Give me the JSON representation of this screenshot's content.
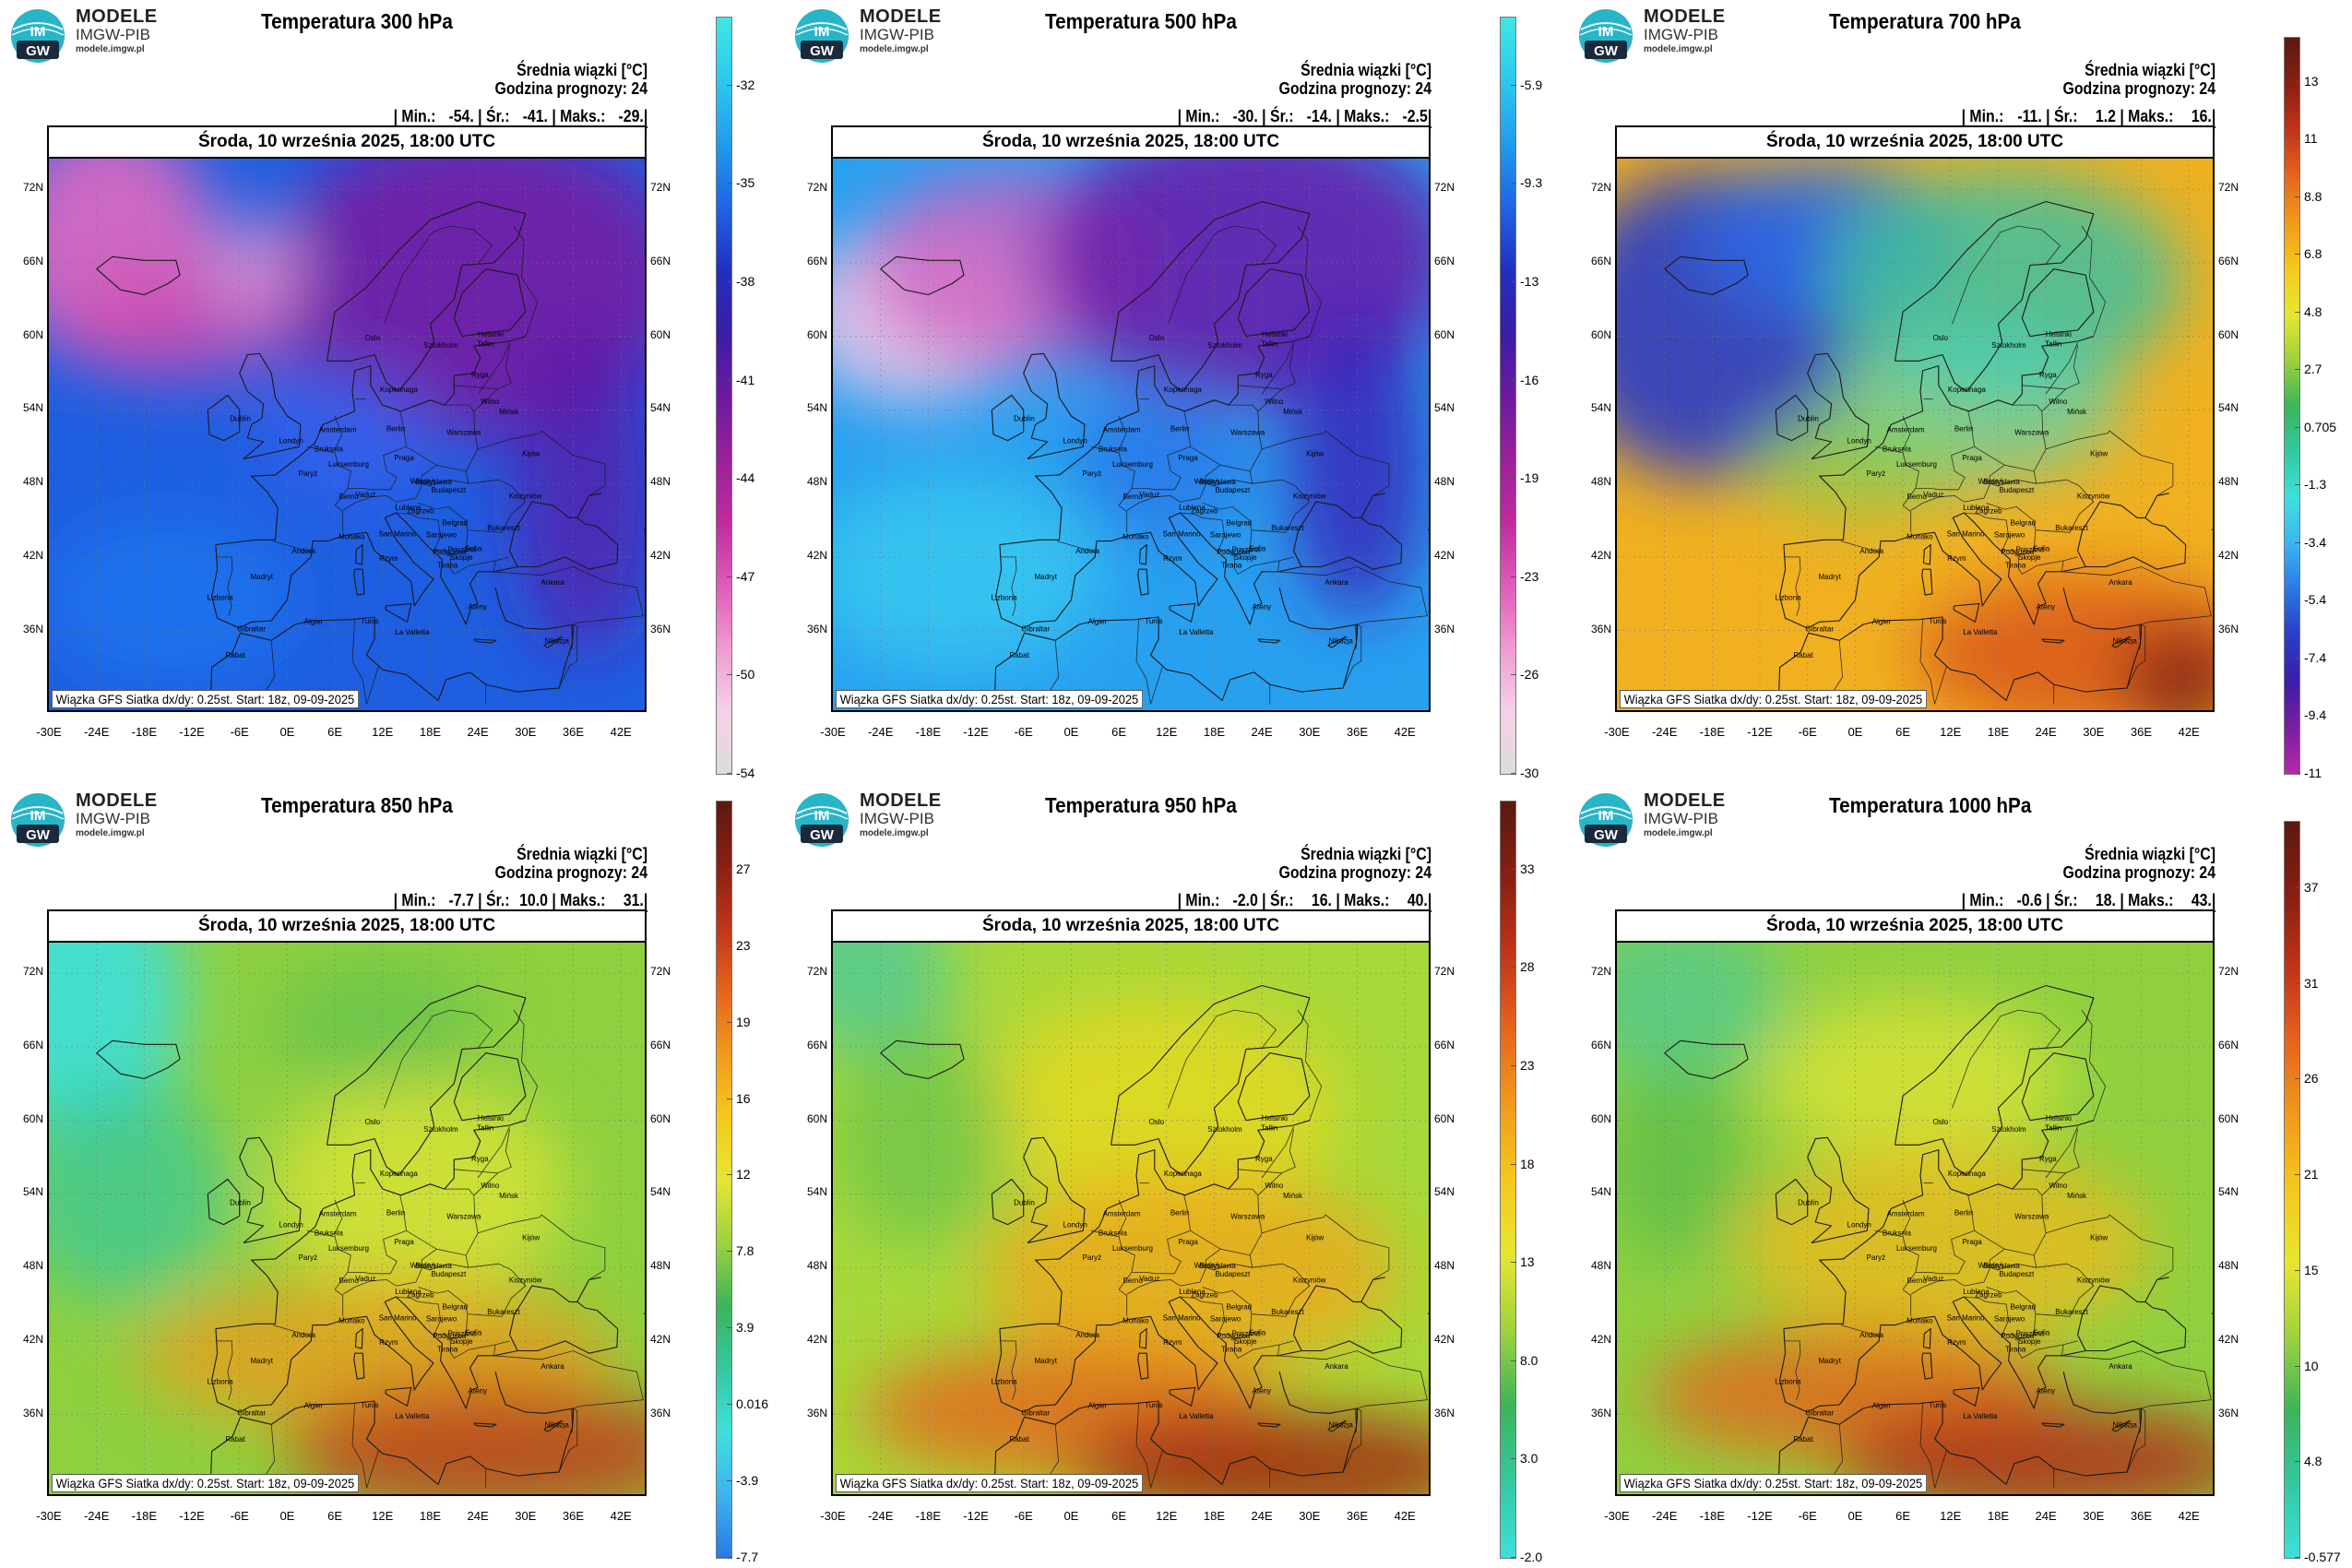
{
  "brand": {
    "line1": "MODELE",
    "line2": "IMGW-PIB",
    "line3": "modele.imgw.pl",
    "logo_text_top": "IM",
    "logo_text_bottom": "GW"
  },
  "common": {
    "date": "Środa, 10 września 2025, 18:00 UTC",
    "mean_label": "Średnia wiązki [°C]",
    "forecast_hour": "Godzina prognozy: 24",
    "footer": "Wiązka GFS Siatka dx/dy: 0.25st. Start: 18z, 09-09-2025",
    "min_label": "Min.:",
    "avg_label": "Śr.:",
    "max_label": "Maks.:",
    "lon_labels": [
      "-30E",
      "-24E",
      "-18E",
      "-12E",
      "-6E",
      "0E",
      "6E",
      "12E",
      "18E",
      "24E",
      "30E",
      "36E",
      "42E"
    ],
    "lat_labels": [
      "72N",
      "66N",
      "60N",
      "54N",
      "48N",
      "42N",
      "36N"
    ]
  },
  "cities": [
    {
      "name": "Oslo",
      "lon": 10.7,
      "lat": 59.9
    },
    {
      "name": "Sztokholm",
      "lon": 18.1,
      "lat": 59.3
    },
    {
      "name": "Helsinki",
      "lon": 24.9,
      "lat": 60.2
    },
    {
      "name": "Tallin",
      "lon": 24.8,
      "lat": 59.4
    },
    {
      "name": "Ryga",
      "lon": 24.1,
      "lat": 56.9
    },
    {
      "name": "Kopenhaga",
      "lon": 12.6,
      "lat": 55.7
    },
    {
      "name": "Wilno",
      "lon": 25.3,
      "lat": 54.7
    },
    {
      "name": "Mińsk",
      "lon": 27.6,
      "lat": 53.9
    },
    {
      "name": "Dublin",
      "lon": -6.3,
      "lat": 53.3
    },
    {
      "name": "Amsterdam",
      "lon": 4.9,
      "lat": 52.4
    },
    {
      "name": "Berlin",
      "lon": 13.4,
      "lat": 52.5
    },
    {
      "name": "Warszawa",
      "lon": 21.0,
      "lat": 52.2
    },
    {
      "name": "Londyn",
      "lon": -0.1,
      "lat": 51.5
    },
    {
      "name": "Bruksela",
      "lon": 4.35,
      "lat": 50.85
    },
    {
      "name": "Kijów",
      "lon": 30.5,
      "lat": 50.45
    },
    {
      "name": "Luksemburg",
      "lon": 6.1,
      "lat": 49.6
    },
    {
      "name": "Praga",
      "lon": 14.4,
      "lat": 50.1
    },
    {
      "name": "Paryż",
      "lon": 2.35,
      "lat": 48.85
    },
    {
      "name": "Wiedeń",
      "lon": 16.4,
      "lat": 48.2
    },
    {
      "name": "Bratysława",
      "lon": 17.1,
      "lat": 48.15
    },
    {
      "name": "Budapeszt",
      "lon": 19.05,
      "lat": 47.5
    },
    {
      "name": "Kiszyniów",
      "lon": 28.85,
      "lat": 47.0
    },
    {
      "name": "Berno",
      "lon": 7.45,
      "lat": 46.95
    },
    {
      "name": "Vaduz",
      "lon": 9.5,
      "lat": 47.1
    },
    {
      "name": "Lublana",
      "lon": 14.5,
      "lat": 46.05
    },
    {
      "name": "Zagrzeb",
      "lon": 16.0,
      "lat": 45.8
    },
    {
      "name": "Belgrad",
      "lon": 20.45,
      "lat": 44.8
    },
    {
      "name": "Bukareszt",
      "lon": 26.1,
      "lat": 44.4
    },
    {
      "name": "Sarajewo",
      "lon": 18.4,
      "lat": 43.85
    },
    {
      "name": "Monako",
      "lon": 7.4,
      "lat": 43.7
    },
    {
      "name": "San Marino",
      "lon": 12.45,
      "lat": 43.9
    },
    {
      "name": "Podgorica",
      "lon": 19.25,
      "lat": 42.45
    },
    {
      "name": "Sofia",
      "lon": 23.3,
      "lat": 42.7
    },
    {
      "name": "Andora",
      "lon": 1.5,
      "lat": 42.5
    },
    {
      "name": "Prisztina",
      "lon": 21.15,
      "lat": 42.65
    },
    {
      "name": "Skopje",
      "lon": 21.45,
      "lat": 42.0
    },
    {
      "name": "Rzym",
      "lon": 12.5,
      "lat": 41.9
    },
    {
      "name": "Tirana",
      "lon": 19.8,
      "lat": 41.35
    },
    {
      "name": "Ankara",
      "lon": 32.85,
      "lat": 39.95
    },
    {
      "name": "Madryt",
      "lon": -3.7,
      "lat": 40.4
    },
    {
      "name": "Lizbona",
      "lon": -9.15,
      "lat": 38.7
    },
    {
      "name": "Ateny",
      "lon": 23.7,
      "lat": 37.95
    },
    {
      "name": "Algier",
      "lon": 3.05,
      "lat": 36.75
    },
    {
      "name": "Tunis",
      "lon": 10.2,
      "lat": 36.8
    },
    {
      "name": "Gibraltar",
      "lon": -5.35,
      "lat": 36.15
    },
    {
      "name": "La Valletta",
      "lon": 14.5,
      "lat": 35.9
    },
    {
      "name": "Nikozja",
      "lon": 33.35,
      "lat": 35.2
    },
    {
      "name": "Rabat",
      "lon": -6.85,
      "lat": 34.0
    }
  ],
  "panels": [
    {
      "title": "Temperatura 300 hPa",
      "min": "-54.",
      "avg": "-41.",
      "max": "-29.",
      "colorbar": {
        "ticks": [
          "-32",
          "-35",
          "-38",
          "-41",
          "-44",
          "-47",
          "-50",
          "-54"
        ],
        "gradient": [
          "#3fe6e6",
          "#2ec8ee",
          "#1f9cee",
          "#1f64e6",
          "#2030c0",
          "#3a1da6",
          "#6a1aa0",
          "#9a1f9a",
          "#c02a9e",
          "#e05ab8",
          "#f09ad0",
          "#f5d0e8",
          "#dcdcdc"
        ]
      }
    },
    {
      "title": "Temperatura 500 hPa",
      "min": "-30.",
      "avg": "-14.",
      "max": "-2.5",
      "colorbar": {
        "ticks": [
          "-5.9",
          "-9.3",
          "-13",
          "-16",
          "-19",
          "-23",
          "-26",
          "-30"
        ],
        "gradient": [
          "#3fe6e6",
          "#2ec8ee",
          "#1f9cee",
          "#1f64e6",
          "#2030c0",
          "#3a1da6",
          "#6a1aa0",
          "#9a1f9a",
          "#c02a9e",
          "#e05ab8",
          "#f09ad0",
          "#f5d0e8",
          "#dcdcdc"
        ]
      }
    },
    {
      "title": "Temperatura 700 hPa",
      "min": "-11.",
      "avg": "1.2",
      "max": "16.",
      "colorbar": {
        "ticks": [
          "13",
          "11",
          "8.8",
          "6.8",
          "4.8",
          "2.7",
          "0.705",
          "-1.3",
          "-3.4",
          "-5.4",
          "-7.4",
          "-9.4",
          "-11"
        ],
        "gradient": [
          "#5a1a10",
          "#8a1e12",
          "#c0341a",
          "#e6641c",
          "#f09a1c",
          "#f5c81c",
          "#e6e632",
          "#9ed23c",
          "#3cb45a",
          "#34c8a0",
          "#3ee0dc",
          "#3cb4f0",
          "#2a78e6",
          "#2a3cc8",
          "#3a1ea8",
          "#7a1ea0",
          "#b42aa8"
        ]
      }
    },
    {
      "title": "Temperatura 850 hPa",
      "min": "-7.7",
      "avg": "10.0",
      "max": "31.",
      "colorbar": {
        "ticks": [
          "27",
          "23",
          "19",
          "16",
          "12",
          "7.8",
          "3.9",
          "0.016",
          "-3.9",
          "-7.7"
        ],
        "gradient": [
          "#5a1a10",
          "#8a1e12",
          "#c0341a",
          "#e6641c",
          "#f09a1c",
          "#f5c81c",
          "#e6e632",
          "#9ed23c",
          "#3cb45a",
          "#34c8a0",
          "#3ee0dc",
          "#3cb4f0",
          "#2a78e6"
        ]
      }
    },
    {
      "title": "Temperatura 950 hPa",
      "min": "-2.0",
      "avg": "16.",
      "max": "40.",
      "colorbar": {
        "ticks": [
          "33",
          "28",
          "23",
          "18",
          "13",
          "8.0",
          "3.0",
          "-2.0"
        ],
        "gradient": [
          "#5a1a10",
          "#8a1e12",
          "#c0341a",
          "#e6641c",
          "#f09a1c",
          "#f5c81c",
          "#e6e632",
          "#9ed23c",
          "#3cb45a",
          "#34c8a0",
          "#3ee0dc"
        ]
      }
    },
    {
      "title": "Temperatura 1000 hPa",
      "min": "-0.6",
      "avg": "18.",
      "max": "43.",
      "colorbar": {
        "ticks": [
          "37",
          "31",
          "26",
          "21",
          "15",
          "10",
          "4.8",
          "-0.577"
        ],
        "gradient": [
          "#5a1a10",
          "#8a1e12",
          "#c0341a",
          "#e6641c",
          "#f09a1c",
          "#f5c81c",
          "#e6e632",
          "#9ed23c",
          "#3cb45a",
          "#34c8a0",
          "#3ee0dc"
        ]
      }
    }
  ]
}
